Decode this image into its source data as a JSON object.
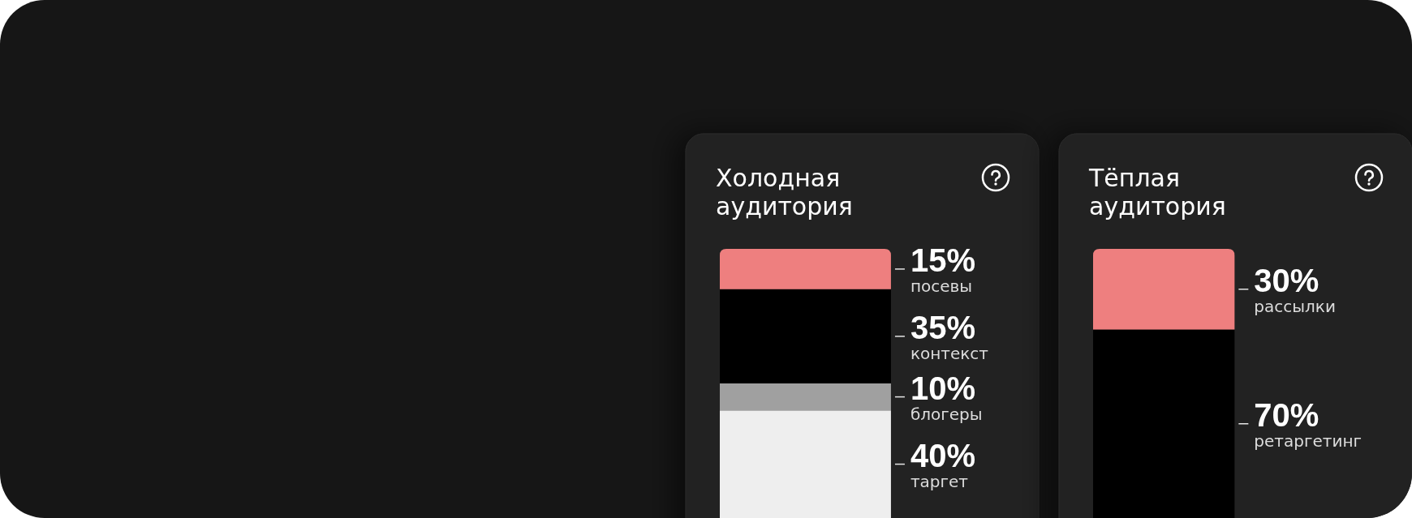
{
  "chart_data": [
    {
      "type": "bar",
      "stacked": true,
      "title": "Холодная аудитория",
      "categories": [
        null
      ],
      "series": [
        {
          "name": "таргет",
          "color": "#eeeeee",
          "values": [
            40
          ],
          "value_labels": [
            "40%"
          ]
        },
        {
          "name": "блогеры",
          "color": "#a0a0a0",
          "values": [
            10
          ],
          "value_labels": [
            "10%"
          ]
        },
        {
          "name": "контекст",
          "color": "#000000",
          "values": [
            35
          ],
          "value_labels": [
            "35%"
          ]
        },
        {
          "name": "посевы",
          "color": "#ee7f7f",
          "values": [
            15
          ],
          "value_labels": [
            "15%"
          ]
        }
      ]
    },
    {
      "type": "bar",
      "stacked": true,
      "title": "Тёплая аудитория",
      "categories": [
        null
      ],
      "series": [
        {
          "name": "ретаргетинг",
          "color": "#000000",
          "values": [
            70
          ],
          "value_labels": [
            "70%"
          ]
        },
        {
          "name": "рассылки",
          "color": "#ee7f7f",
          "values": [
            30
          ],
          "value_labels": [
            "30%"
          ]
        }
      ]
    }
  ]
}
